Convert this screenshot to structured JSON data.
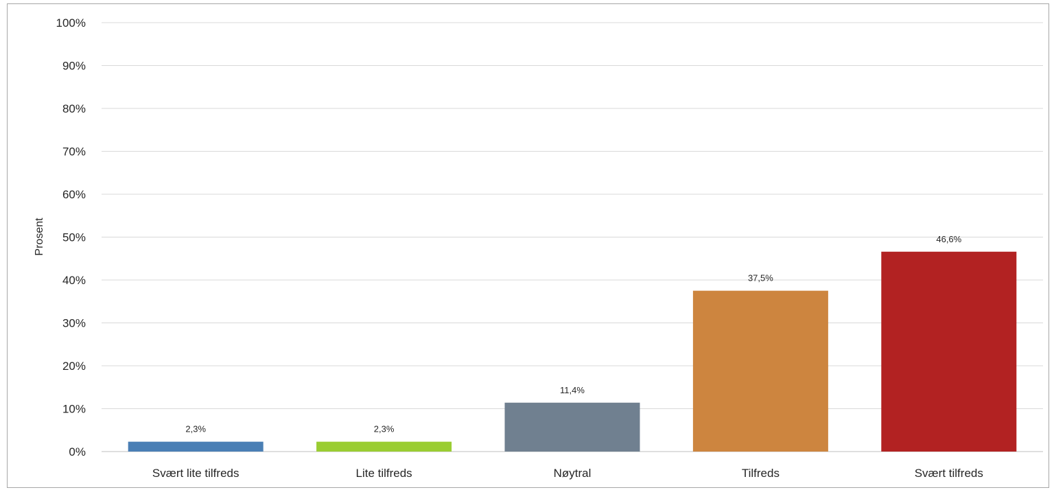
{
  "chart_data": {
    "type": "bar",
    "categories": [
      "Svært lite tilfreds",
      "Lite tilfreds",
      "Nøytral",
      "Tilfreds",
      "Svært tilfreds"
    ],
    "values": [
      2.3,
      2.3,
      11.4,
      37.5,
      46.6
    ],
    "data_labels": [
      "2,3%",
      "2,3%",
      "11,4%",
      "37,5%",
      "46,6%"
    ],
    "colors": [
      "#4a7fb5",
      "#9acd32",
      "#708090",
      "#cd853f",
      "#b22222"
    ],
    "ylabel": "Prosent",
    "ylim": [
      0,
      100
    ],
    "yticks": [
      0,
      10,
      20,
      30,
      40,
      50,
      60,
      70,
      80,
      90,
      100
    ],
    "ytick_labels": [
      "0%",
      "10%",
      "20%",
      "30%",
      "40%",
      "50%",
      "60%",
      "70%",
      "80%",
      "90%",
      "100%"
    ],
    "grid": true,
    "gridline_color": "#d9d9d9"
  }
}
